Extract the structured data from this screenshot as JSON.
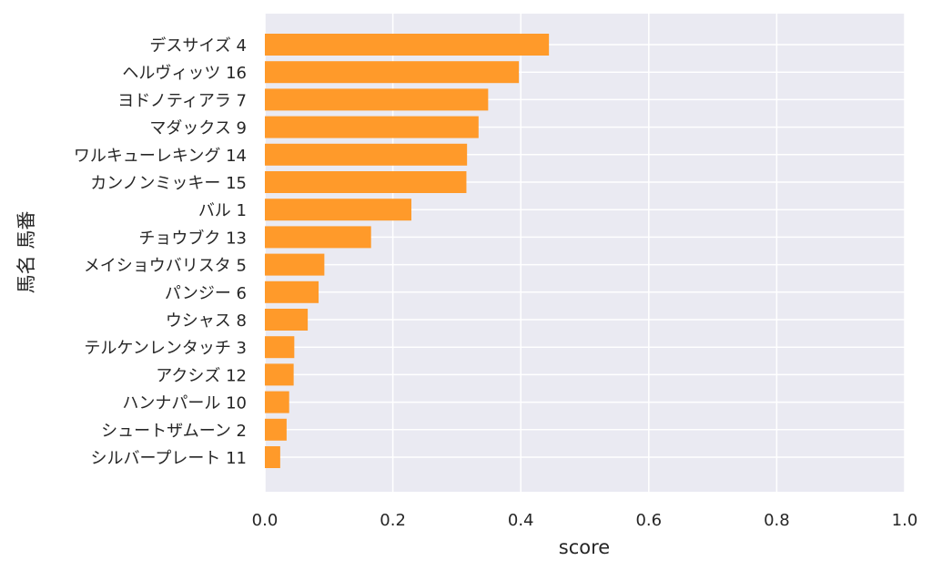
{
  "chart_data": {
    "type": "bar",
    "orientation": "horizontal",
    "categories": [
      "デスサイズ 4",
      "ヘルヴィッツ 16",
      "ヨドノティアラ 7",
      "マダックス 9",
      "ワルキューレキング 14",
      "カンノンミッキー 15",
      "バル 1",
      "チョウブク 13",
      "メイショウバリスタ 5",
      "パンジー 6",
      "ウシャス 8",
      "テルケンレンタッチ 3",
      "アクシズ 12",
      "ハンナパール 10",
      "シュートザムーン 2",
      "シルバープレート 11"
    ],
    "values": [
      0.444,
      0.397,
      0.349,
      0.334,
      0.316,
      0.315,
      0.229,
      0.166,
      0.093,
      0.084,
      0.067,
      0.046,
      0.045,
      0.038,
      0.034,
      0.024
    ],
    "xlabel": "score",
    "ylabel": "馬名 馬番",
    "xlim": [
      0,
      1.0
    ],
    "xticks": [
      "0.0",
      "0.2",
      "0.4",
      "0.6",
      "0.8",
      "1.0"
    ],
    "grid": true,
    "colors": {
      "bar": "#ff9a2a",
      "plot_background": "#eaeaf2",
      "grid": "#ffffff",
      "text": "#262626"
    }
  }
}
